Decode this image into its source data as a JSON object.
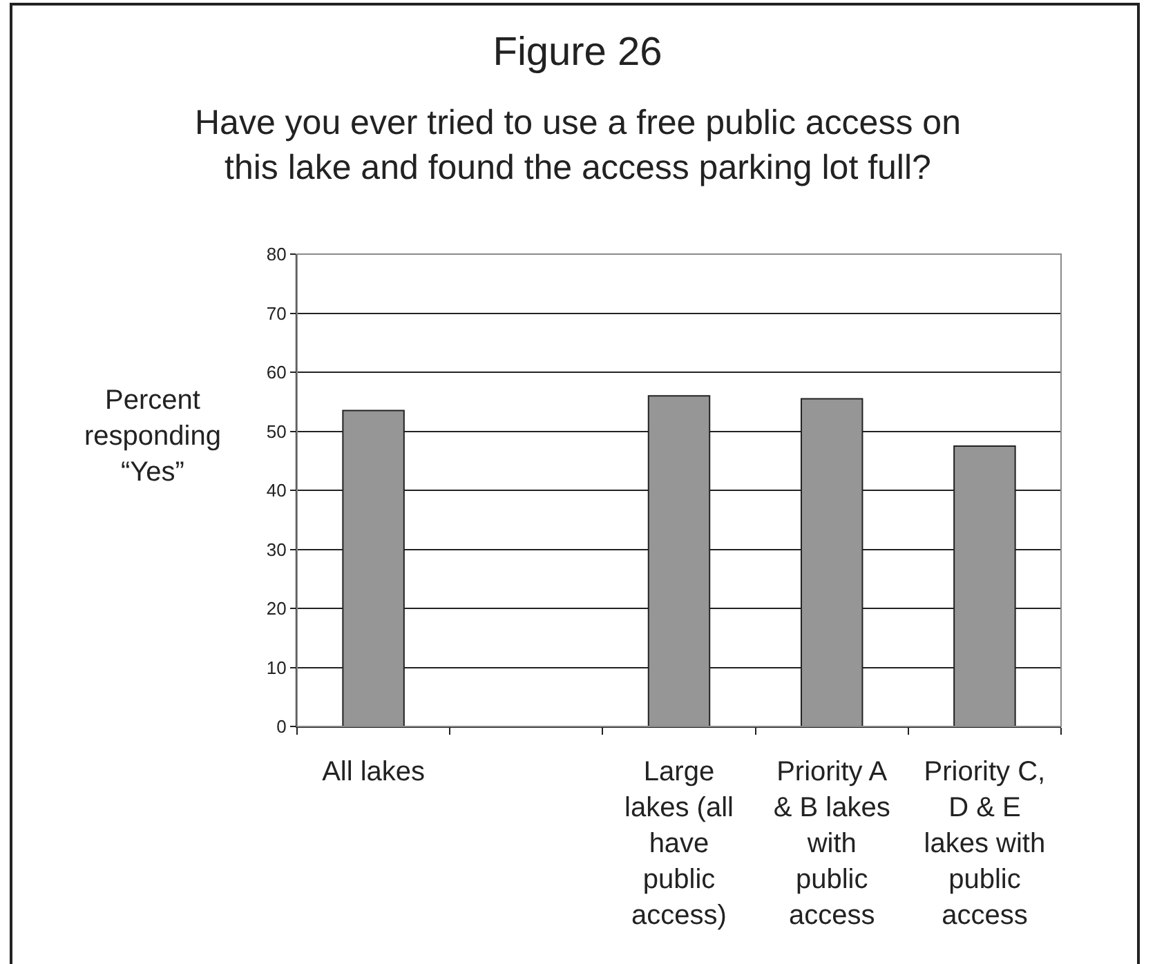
{
  "chart_data": {
    "type": "bar",
    "title": "Figure 26",
    "subtitle": "Have you ever tried to use a free public access on this lake and found the access parking lot full?",
    "ylabel": "Percent responding “Yes”",
    "categories": [
      "All lakes",
      null,
      "Large lakes (all have public access)",
      "Priority A & B lakes with public access",
      "Priority C, D & E lakes with public access"
    ],
    "values": [
      53.5,
      null,
      56,
      55.5,
      47.5
    ],
    "color": "#969696",
    "ylim": [
      0,
      80
    ],
    "yticks": [
      0,
      10,
      20,
      30,
      40,
      50,
      60,
      70,
      80
    ],
    "grid": "y"
  }
}
